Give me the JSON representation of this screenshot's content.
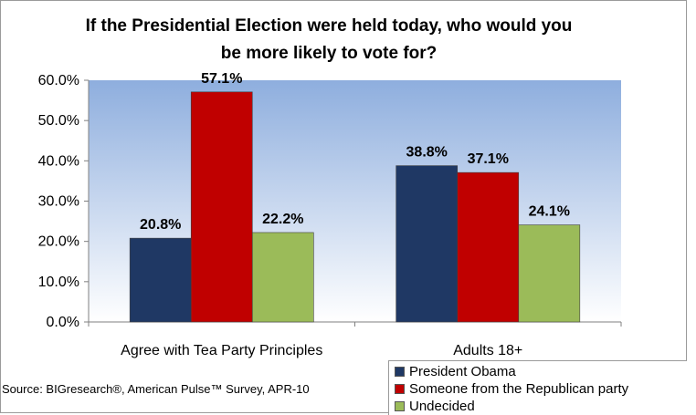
{
  "title": "If the Presidential Election were held today, who would you be more likely to vote for?",
  "source": "Source: BIGresearch®, American Pulse™ Survey, APR-10",
  "chart_data": {
    "type": "bar",
    "title": "If the Presidential Election were held today, who would you be more likely to vote for?",
    "categories": [
      "Agree with Tea Party Principles",
      "Adults 18+"
    ],
    "series": [
      {
        "name": "President Obama",
        "values": [
          20.8,
          38.8
        ],
        "labels": [
          "20.8%",
          "38.8%"
        ],
        "color": "#1f3864"
      },
      {
        "name": "Someone from the Republican party",
        "values": [
          57.1,
          37.1
        ],
        "labels": [
          "57.1%",
          "37.1%"
        ],
        "color": "#c00000"
      },
      {
        "name": "Undecided",
        "values": [
          22.2,
          24.1
        ],
        "labels": [
          "22.2%",
          "24.1%"
        ],
        "color": "#9bbb59"
      }
    ],
    "ylim": [
      0,
      60
    ],
    "yticks": [
      0,
      10,
      20,
      30,
      40,
      50,
      60
    ],
    "ytick_labels": [
      "0.0%",
      "10.0%",
      "20.0%",
      "30.0%",
      "40.0%",
      "50.0%",
      "60.0%"
    ],
    "xlabel": "",
    "ylabel": "",
    "grid": false,
    "legend_position": "bottom-right",
    "plot_background": "gradient-blue"
  }
}
